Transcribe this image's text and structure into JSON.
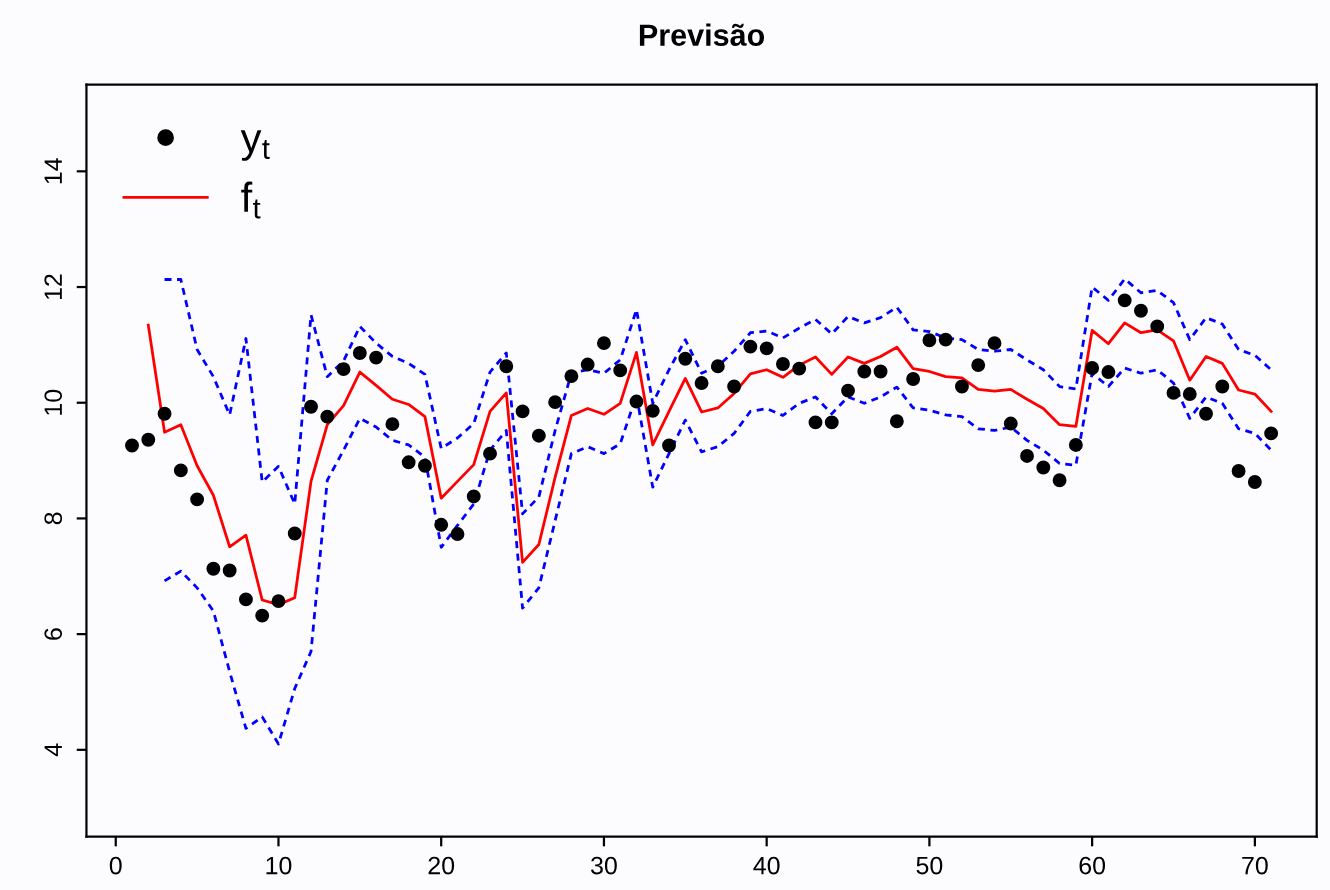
{
  "chart_data": {
    "type": "line",
    "title": "Previsão",
    "x": [
      1,
      2,
      3,
      4,
      5,
      6,
      7,
      8,
      9,
      10,
      11,
      12,
      13,
      14,
      15,
      16,
      17,
      18,
      19,
      20,
      21,
      22,
      23,
      24,
      25,
      26,
      27,
      28,
      29,
      30,
      31,
      32,
      33,
      34,
      35,
      36,
      37,
      38,
      39,
      40,
      41,
      42,
      43,
      44,
      45,
      46,
      47,
      48,
      49,
      50,
      51,
      52,
      53,
      54,
      55,
      56,
      57,
      58,
      59,
      60,
      61,
      62,
      63,
      64,
      65,
      66,
      67,
      68,
      69,
      70,
      71
    ],
    "series": [
      {
        "name": "y$_{t}$",
        "type": "scatter",
        "marker": "circle",
        "color": "#000000",
        "values": [
          9.26,
          9.36,
          9.81,
          8.83,
          8.33,
          7.13,
          7.1,
          6.6,
          6.32,
          6.57,
          7.74,
          9.93,
          9.76,
          10.58,
          10.86,
          10.78,
          9.63,
          8.97,
          8.91,
          7.89,
          7.73,
          8.38,
          9.12,
          10.63,
          9.85,
          9.43,
          10.01,
          10.46,
          10.66,
          11.03,
          10.56,
          10.02,
          9.86,
          9.26,
          10.76,
          10.34,
          10.63,
          10.28,
          10.97,
          10.94,
          10.67,
          10.59,
          9.66,
          9.66,
          10.21,
          10.54,
          10.54,
          9.68,
          10.41,
          11.08,
          11.09,
          10.28,
          10.65,
          11.03,
          9.64,
          9.08,
          8.88,
          8.66,
          9.27,
          10.6,
          10.53,
          11.77,
          11.59,
          11.32,
          10.17,
          10.15,
          9.81,
          10.28,
          8.82,
          8.63,
          9.47
        ]
      },
      {
        "name": "f$_{t}$",
        "line_style": "solid",
        "color": "#ff0000",
        "values": [
          null,
          11.34,
          9.49,
          9.62,
          8.91,
          8.4,
          7.51,
          7.71,
          6.59,
          6.51,
          6.63,
          8.64,
          9.62,
          9.95,
          10.53,
          10.3,
          10.06,
          9.97,
          9.76,
          8.35,
          8.64,
          8.93,
          9.85,
          10.17,
          7.24,
          7.55,
          8.71,
          9.78,
          9.9,
          9.8,
          9.99,
          10.87,
          9.27,
          9.85,
          10.42,
          9.84,
          9.91,
          10.16,
          10.5,
          10.57,
          10.44,
          10.65,
          10.79,
          10.49,
          10.79,
          10.68,
          10.8,
          10.96,
          10.59,
          10.54,
          10.45,
          10.43,
          10.23,
          10.2,
          10.23,
          10.06,
          9.9,
          9.62,
          9.59,
          11.25,
          11.02,
          11.38,
          11.21,
          11.26,
          11.07,
          10.39,
          10.8,
          10.68,
          10.22,
          10.15,
          9.85
        ]
      },
      {
        "line_style": "dashed",
        "color": "#0000ff",
        "values": [
          null,
          null,
          12.13,
          12.13,
          10.92,
          10.45,
          9.79,
          11.11,
          8.63,
          8.9,
          8.25,
          11.52,
          10.45,
          10.72,
          11.32,
          11.03,
          10.8,
          10.68,
          10.49,
          9.21,
          9.39,
          9.64,
          10.53,
          10.86,
          8.08,
          8.37,
          9.52,
          10.51,
          10.57,
          10.51,
          10.74,
          11.61,
          9.99,
          10.57,
          11.09,
          10.51,
          10.63,
          10.89,
          11.21,
          11.24,
          11.12,
          11.29,
          11.44,
          11.19,
          11.49,
          11.38,
          11.47,
          11.65,
          11.26,
          11.23,
          11.12,
          11.09,
          10.92,
          10.89,
          10.92,
          10.74,
          10.57,
          10.28,
          10.24,
          12.0,
          11.77,
          12.14,
          11.9,
          11.94,
          11.73,
          11.09,
          11.47,
          11.36,
          10.92,
          10.82,
          10.57
        ]
      },
      {
        "line_style": "dashed",
        "color": "#0000ff",
        "values": [
          null,
          null,
          6.92,
          7.09,
          6.8,
          6.4,
          5.35,
          4.37,
          4.57,
          4.1,
          5.06,
          5.7,
          8.66,
          9.18,
          9.73,
          9.58,
          9.35,
          9.27,
          9.06,
          7.5,
          7.88,
          8.25,
          9.18,
          9.52,
          6.45,
          6.8,
          7.96,
          9.12,
          9.24,
          9.12,
          9.29,
          10.13,
          8.54,
          9.12,
          9.7,
          9.15,
          9.24,
          9.47,
          9.85,
          9.9,
          9.78,
          9.99,
          10.1,
          9.81,
          10.1,
          9.99,
          10.1,
          10.27,
          9.91,
          9.87,
          9.79,
          9.76,
          9.55,
          9.52,
          9.58,
          9.35,
          9.18,
          8.95,
          8.92,
          10.51,
          10.28,
          10.6,
          10.51,
          10.57,
          10.34,
          9.73,
          10.1,
          9.99,
          9.55,
          9.47,
          9.18
        ]
      }
    ],
    "xlim": [
      -1.8,
      73.8
    ],
    "ylim": [
      2.5,
      15.5
    ],
    "xticks": [
      0,
      10,
      20,
      30,
      40,
      50,
      60,
      70
    ],
    "yticks": [
      4,
      6,
      8,
      10,
      12,
      14
    ],
    "grid": false,
    "legend": "top left"
  }
}
